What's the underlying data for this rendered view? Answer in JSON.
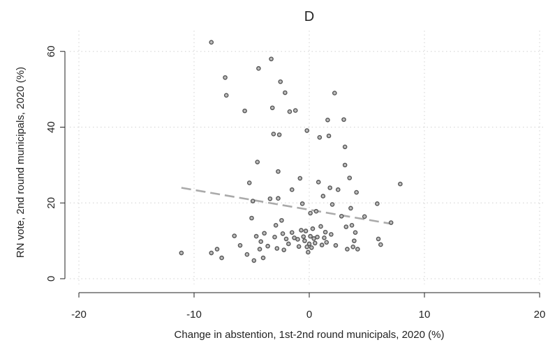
{
  "chart_data": {
    "type": "scatter",
    "title": "D",
    "xlabel": "Change in abstention, 1st-2nd round municipals, 2020 (%)",
    "ylabel": "RN vote, 2nd round municipals, 2020 (%)",
    "xlim": [
      -20,
      20
    ],
    "ylim": [
      0,
      64
    ],
    "xticks": [
      -20,
      -10,
      0,
      10,
      20
    ],
    "yticks": [
      0,
      20,
      40,
      60
    ],
    "grid": true,
    "legend": "none",
    "point_color": "#555555",
    "fit_color": "#aaaaaa",
    "fit_line": {
      "x": [
        -11.1,
        7.1
      ],
      "y": [
        24.0,
        14.5
      ]
    },
    "points": [
      [
        -11.1,
        6.8
      ],
      [
        -8.5,
        62.4
      ],
      [
        -8.5,
        6.8
      ],
      [
        -8.0,
        7.8
      ],
      [
        -7.6,
        5.5
      ],
      [
        -7.3,
        53.1
      ],
      [
        -7.2,
        48.4
      ],
      [
        -6.5,
        11.3
      ],
      [
        -6.0,
        8.8
      ],
      [
        -5.6,
        44.3
      ],
      [
        -5.4,
        6.4
      ],
      [
        -5.2,
        25.3
      ],
      [
        -5.0,
        16.0
      ],
      [
        -4.9,
        20.5
      ],
      [
        -4.8,
        4.8
      ],
      [
        -4.6,
        11.2
      ],
      [
        -4.5,
        30.8
      ],
      [
        -4.4,
        55.5
      ],
      [
        -4.3,
        7.8
      ],
      [
        -4.2,
        9.8
      ],
      [
        -4.0,
        5.5
      ],
      [
        -3.9,
        12.0
      ],
      [
        -3.6,
        8.6
      ],
      [
        -3.4,
        21.1
      ],
      [
        -3.3,
        58.0
      ],
      [
        -3.2,
        45.1
      ],
      [
        -3.1,
        38.2
      ],
      [
        -3.0,
        11.0
      ],
      [
        -2.9,
        14.1
      ],
      [
        -2.8,
        8.0
      ],
      [
        -2.7,
        28.3
      ],
      [
        -2.7,
        21.2
      ],
      [
        -2.6,
        38.0
      ],
      [
        -2.5,
        52.0
      ],
      [
        -2.4,
        15.4
      ],
      [
        -2.3,
        11.9
      ],
      [
        -2.2,
        7.6
      ],
      [
        -2.1,
        49.1
      ],
      [
        -2.0,
        10.5
      ],
      [
        -1.8,
        9.2
      ],
      [
        -1.7,
        44.1
      ],
      [
        -1.5,
        23.5
      ],
      [
        -1.5,
        12.2
      ],
      [
        -1.3,
        10.8
      ],
      [
        -1.2,
        44.4
      ],
      [
        -1.0,
        10.4
      ],
      [
        -0.9,
        8.5
      ],
      [
        -0.8,
        26.5
      ],
      [
        -0.7,
        12.8
      ],
      [
        -0.6,
        19.8
      ],
      [
        -0.5,
        11.1
      ],
      [
        -0.4,
        10.0
      ],
      [
        -0.3,
        12.6
      ],
      [
        -0.2,
        8.4
      ],
      [
        -0.2,
        39.1
      ],
      [
        -0.1,
        7.0
      ],
      [
        0.0,
        9.2
      ],
      [
        0.1,
        17.3
      ],
      [
        0.1,
        11.2
      ],
      [
        0.2,
        8.2
      ],
      [
        0.3,
        13.2
      ],
      [
        0.4,
        10.6
      ],
      [
        0.5,
        9.4
      ],
      [
        0.6,
        17.8
      ],
      [
        0.7,
        11.0
      ],
      [
        0.8,
        25.5
      ],
      [
        0.9,
        37.3
      ],
      [
        1.0,
        13.8
      ],
      [
        1.1,
        8.9
      ],
      [
        1.2,
        21.8
      ],
      [
        1.3,
        10.8
      ],
      [
        1.4,
        12.3
      ],
      [
        1.5,
        9.6
      ],
      [
        1.6,
        41.9
      ],
      [
        1.7,
        37.7
      ],
      [
        1.8,
        24.0
      ],
      [
        1.9,
        11.7
      ],
      [
        2.0,
        19.6
      ],
      [
        2.2,
        49.0
      ],
      [
        2.3,
        8.8
      ],
      [
        2.5,
        23.5
      ],
      [
        2.8,
        16.5
      ],
      [
        3.0,
        42.0
      ],
      [
        3.1,
        34.8
      ],
      [
        3.1,
        30.0
      ],
      [
        3.2,
        13.7
      ],
      [
        3.3,
        7.8
      ],
      [
        3.5,
        26.6
      ],
      [
        3.6,
        18.6
      ],
      [
        3.7,
        14.1
      ],
      [
        3.8,
        8.4
      ],
      [
        3.9,
        10.0
      ],
      [
        4.0,
        12.2
      ],
      [
        4.1,
        22.8
      ],
      [
        4.2,
        7.8
      ],
      [
        4.8,
        16.4
      ],
      [
        5.9,
        19.8
      ],
      [
        6.0,
        10.5
      ],
      [
        6.2,
        9.0
      ],
      [
        7.1,
        14.8
      ],
      [
        7.9,
        25.0
      ]
    ]
  }
}
